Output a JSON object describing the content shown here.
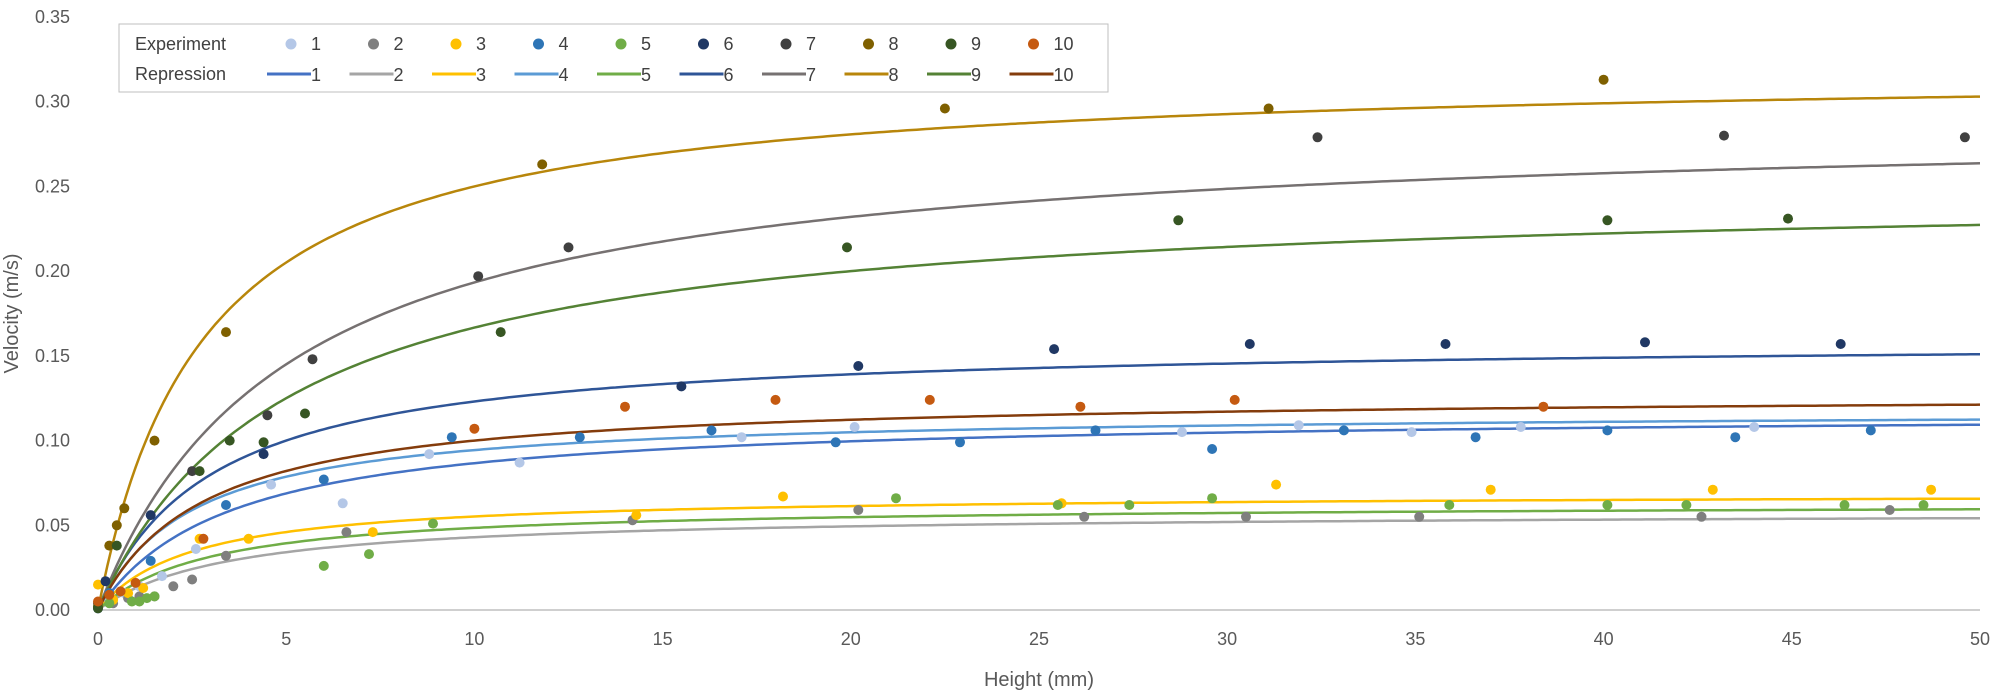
{
  "chart_data": {
    "type": "scatter",
    "xlabel": "Height (mm)",
    "ylabel": "Velocity (m/s)",
    "xlim": [
      0,
      50
    ],
    "ylim": [
      0,
      0.35
    ],
    "x_ticks": [
      "0",
      "5",
      "10",
      "15",
      "20",
      "25",
      "30",
      "35",
      "40",
      "45",
      "50"
    ],
    "y_ticks": [
      "0.00",
      "0.05",
      "0.10",
      "0.15",
      "0.20",
      "0.25",
      "0.30",
      "0.35"
    ],
    "grid": false,
    "legend": {
      "position": "top-left",
      "row_labels": [
        "Experiment",
        "Repression"
      ]
    },
    "series": [
      {
        "name": "1",
        "color": "#B4C7E7",
        "curve_color": "#4472C4",
        "vmax": 0.117,
        "k": 3.5,
        "points": [
          [
            0,
            0.001
          ],
          [
            0.3,
            0.005
          ],
          [
            0.7,
            0.01
          ],
          [
            1.1,
            0.014
          ],
          [
            1.7,
            0.02
          ],
          [
            2.6,
            0.036
          ],
          [
            4.6,
            0.074
          ],
          [
            6.5,
            0.063
          ],
          [
            8.8,
            0.092
          ],
          [
            11.2,
            0.087
          ],
          [
            17.1,
            0.102
          ],
          [
            20.1,
            0.108
          ],
          [
            28.8,
            0.105
          ],
          [
            31.9,
            0.109
          ],
          [
            34.9,
            0.105
          ],
          [
            37.8,
            0.108
          ],
          [
            44.0,
            0.108
          ]
        ]
      },
      {
        "name": "2",
        "color": "#7F7F7F",
        "curve_color": "#A5A5A5",
        "vmax": 0.058,
        "k": 3.5,
        "points": [
          [
            0,
            0.001
          ],
          [
            0.4,
            0.004
          ],
          [
            0.8,
            0.007
          ],
          [
            1.1,
            0.008
          ],
          [
            1.5,
            0.008
          ],
          [
            2.0,
            0.014
          ],
          [
            2.5,
            0.018
          ],
          [
            3.4,
            0.032
          ],
          [
            6.6,
            0.046
          ],
          [
            14.2,
            0.053
          ],
          [
            20.2,
            0.059
          ],
          [
            26.2,
            0.055
          ],
          [
            30.5,
            0.055
          ],
          [
            35.1,
            0.055
          ],
          [
            42.6,
            0.055
          ],
          [
            47.6,
            0.059
          ]
        ]
      },
      {
        "name": "3",
        "color": "#FFC000",
        "curve_color": "#FFC000",
        "vmax": 0.069,
        "k": 2.5,
        "points": [
          [
            0,
            0.015
          ],
          [
            0.4,
            0.006
          ],
          [
            0.8,
            0.01
          ],
          [
            1.2,
            0.013
          ],
          [
            2.7,
            0.042
          ],
          [
            4.0,
            0.042
          ],
          [
            7.3,
            0.046
          ],
          [
            14.3,
            0.056
          ],
          [
            18.2,
            0.067
          ],
          [
            25.6,
            0.063
          ],
          [
            31.3,
            0.074
          ],
          [
            37.0,
            0.071
          ],
          [
            42.9,
            0.071
          ],
          [
            48.7,
            0.071
          ]
        ]
      },
      {
        "name": "4",
        "color": "#2E75B6",
        "curve_color": "#5B9BD5",
        "vmax": 0.118,
        "k": 2.5,
        "points": [
          [
            0,
            0.001
          ],
          [
            0.3,
            0.01
          ],
          [
            1.4,
            0.029
          ],
          [
            3.4,
            0.062
          ],
          [
            6.0,
            0.077
          ],
          [
            9.4,
            0.102
          ],
          [
            12.8,
            0.102
          ],
          [
            16.3,
            0.106
          ],
          [
            19.6,
            0.099
          ],
          [
            22.9,
            0.099
          ],
          [
            26.5,
            0.106
          ],
          [
            29.6,
            0.095
          ],
          [
            33.1,
            0.106
          ],
          [
            36.6,
            0.102
          ],
          [
            40.1,
            0.106
          ],
          [
            43.5,
            0.102
          ],
          [
            47.1,
            0.106
          ]
        ]
      },
      {
        "name": "5",
        "color": "#70AD47",
        "curve_color": "#70AD47",
        "vmax": 0.063,
        "k": 3.0,
        "points": [
          [
            0,
            0.002
          ],
          [
            0.3,
            0.004
          ],
          [
            0.9,
            0.005
          ],
          [
            1.1,
            0.005
          ],
          [
            1.3,
            0.007
          ],
          [
            1.5,
            0.008
          ],
          [
            6.0,
            0.026
          ],
          [
            7.2,
            0.033
          ],
          [
            8.9,
            0.051
          ],
          [
            21.2,
            0.066
          ],
          [
            25.5,
            0.062
          ],
          [
            27.4,
            0.062
          ],
          [
            29.6,
            0.066
          ],
          [
            35.9,
            0.062
          ],
          [
            40.1,
            0.062
          ],
          [
            42.2,
            0.062
          ],
          [
            46.4,
            0.062
          ],
          [
            48.5,
            0.062
          ]
        ]
      },
      {
        "name": "6",
        "color": "#203864",
        "curve_color": "#2F5597",
        "vmax": 0.16,
        "k": 3.0,
        "points": [
          [
            0,
            0.002
          ],
          [
            0.2,
            0.017
          ],
          [
            1.4,
            0.056
          ],
          [
            4.4,
            0.092
          ],
          [
            15.5,
            0.132
          ],
          [
            20.2,
            0.144
          ],
          [
            25.4,
            0.154
          ],
          [
            30.6,
            0.157
          ],
          [
            35.8,
            0.157
          ],
          [
            41.1,
            0.158
          ],
          [
            46.3,
            0.157
          ]
        ]
      },
      {
        "name": "7",
        "color": "#404040",
        "curve_color": "#767171",
        "vmax": 0.29,
        "k": 5.0,
        "points": [
          [
            0,
            0.004
          ],
          [
            2.5,
            0.082
          ],
          [
            4.5,
            0.115
          ],
          [
            5.7,
            0.148
          ],
          [
            10.1,
            0.197
          ],
          [
            12.5,
            0.214
          ],
          [
            32.4,
            0.279
          ],
          [
            43.2,
            0.28
          ],
          [
            49.6,
            0.279
          ]
        ]
      },
      {
        "name": "8",
        "color": "#7F6000",
        "curve_color": "#B8860B",
        "vmax": 0.32,
        "k": 2.8,
        "points": [
          [
            0,
            0.002
          ],
          [
            0.3,
            0.038
          ],
          [
            0.5,
            0.05
          ],
          [
            0.7,
            0.06
          ],
          [
            1.5,
            0.1
          ],
          [
            3.4,
            0.164
          ],
          [
            11.8,
            0.263
          ],
          [
            22.5,
            0.296
          ],
          [
            31.1,
            0.296
          ],
          [
            40.0,
            0.313
          ]
        ]
      },
      {
        "name": "9",
        "color": "#375623",
        "curve_color": "#548235",
        "vmax": 0.25,
        "k": 5.0,
        "points": [
          [
            0,
            0.001
          ],
          [
            0.5,
            0.038
          ],
          [
            2.7,
            0.082
          ],
          [
            3.5,
            0.1
          ],
          [
            4.4,
            0.099
          ],
          [
            5.5,
            0.116
          ],
          [
            10.7,
            0.164
          ],
          [
            19.9,
            0.214
          ],
          [
            28.7,
            0.23
          ],
          [
            40.1,
            0.23
          ],
          [
            44.9,
            0.231
          ]
        ]
      },
      {
        "name": "10",
        "color": "#C55A11",
        "curve_color": "#843C0C",
        "vmax": 0.128,
        "k": 2.8,
        "points": [
          [
            0,
            0.005
          ],
          [
            0.3,
            0.009
          ],
          [
            0.6,
            0.011
          ],
          [
            1.0,
            0.016
          ],
          [
            2.8,
            0.042
          ],
          [
            10.0,
            0.107
          ],
          [
            14.0,
            0.12
          ],
          [
            18.0,
            0.124
          ],
          [
            22.1,
            0.124
          ],
          [
            26.1,
            0.12
          ],
          [
            30.2,
            0.124
          ],
          [
            38.4,
            0.12
          ]
        ]
      }
    ]
  }
}
